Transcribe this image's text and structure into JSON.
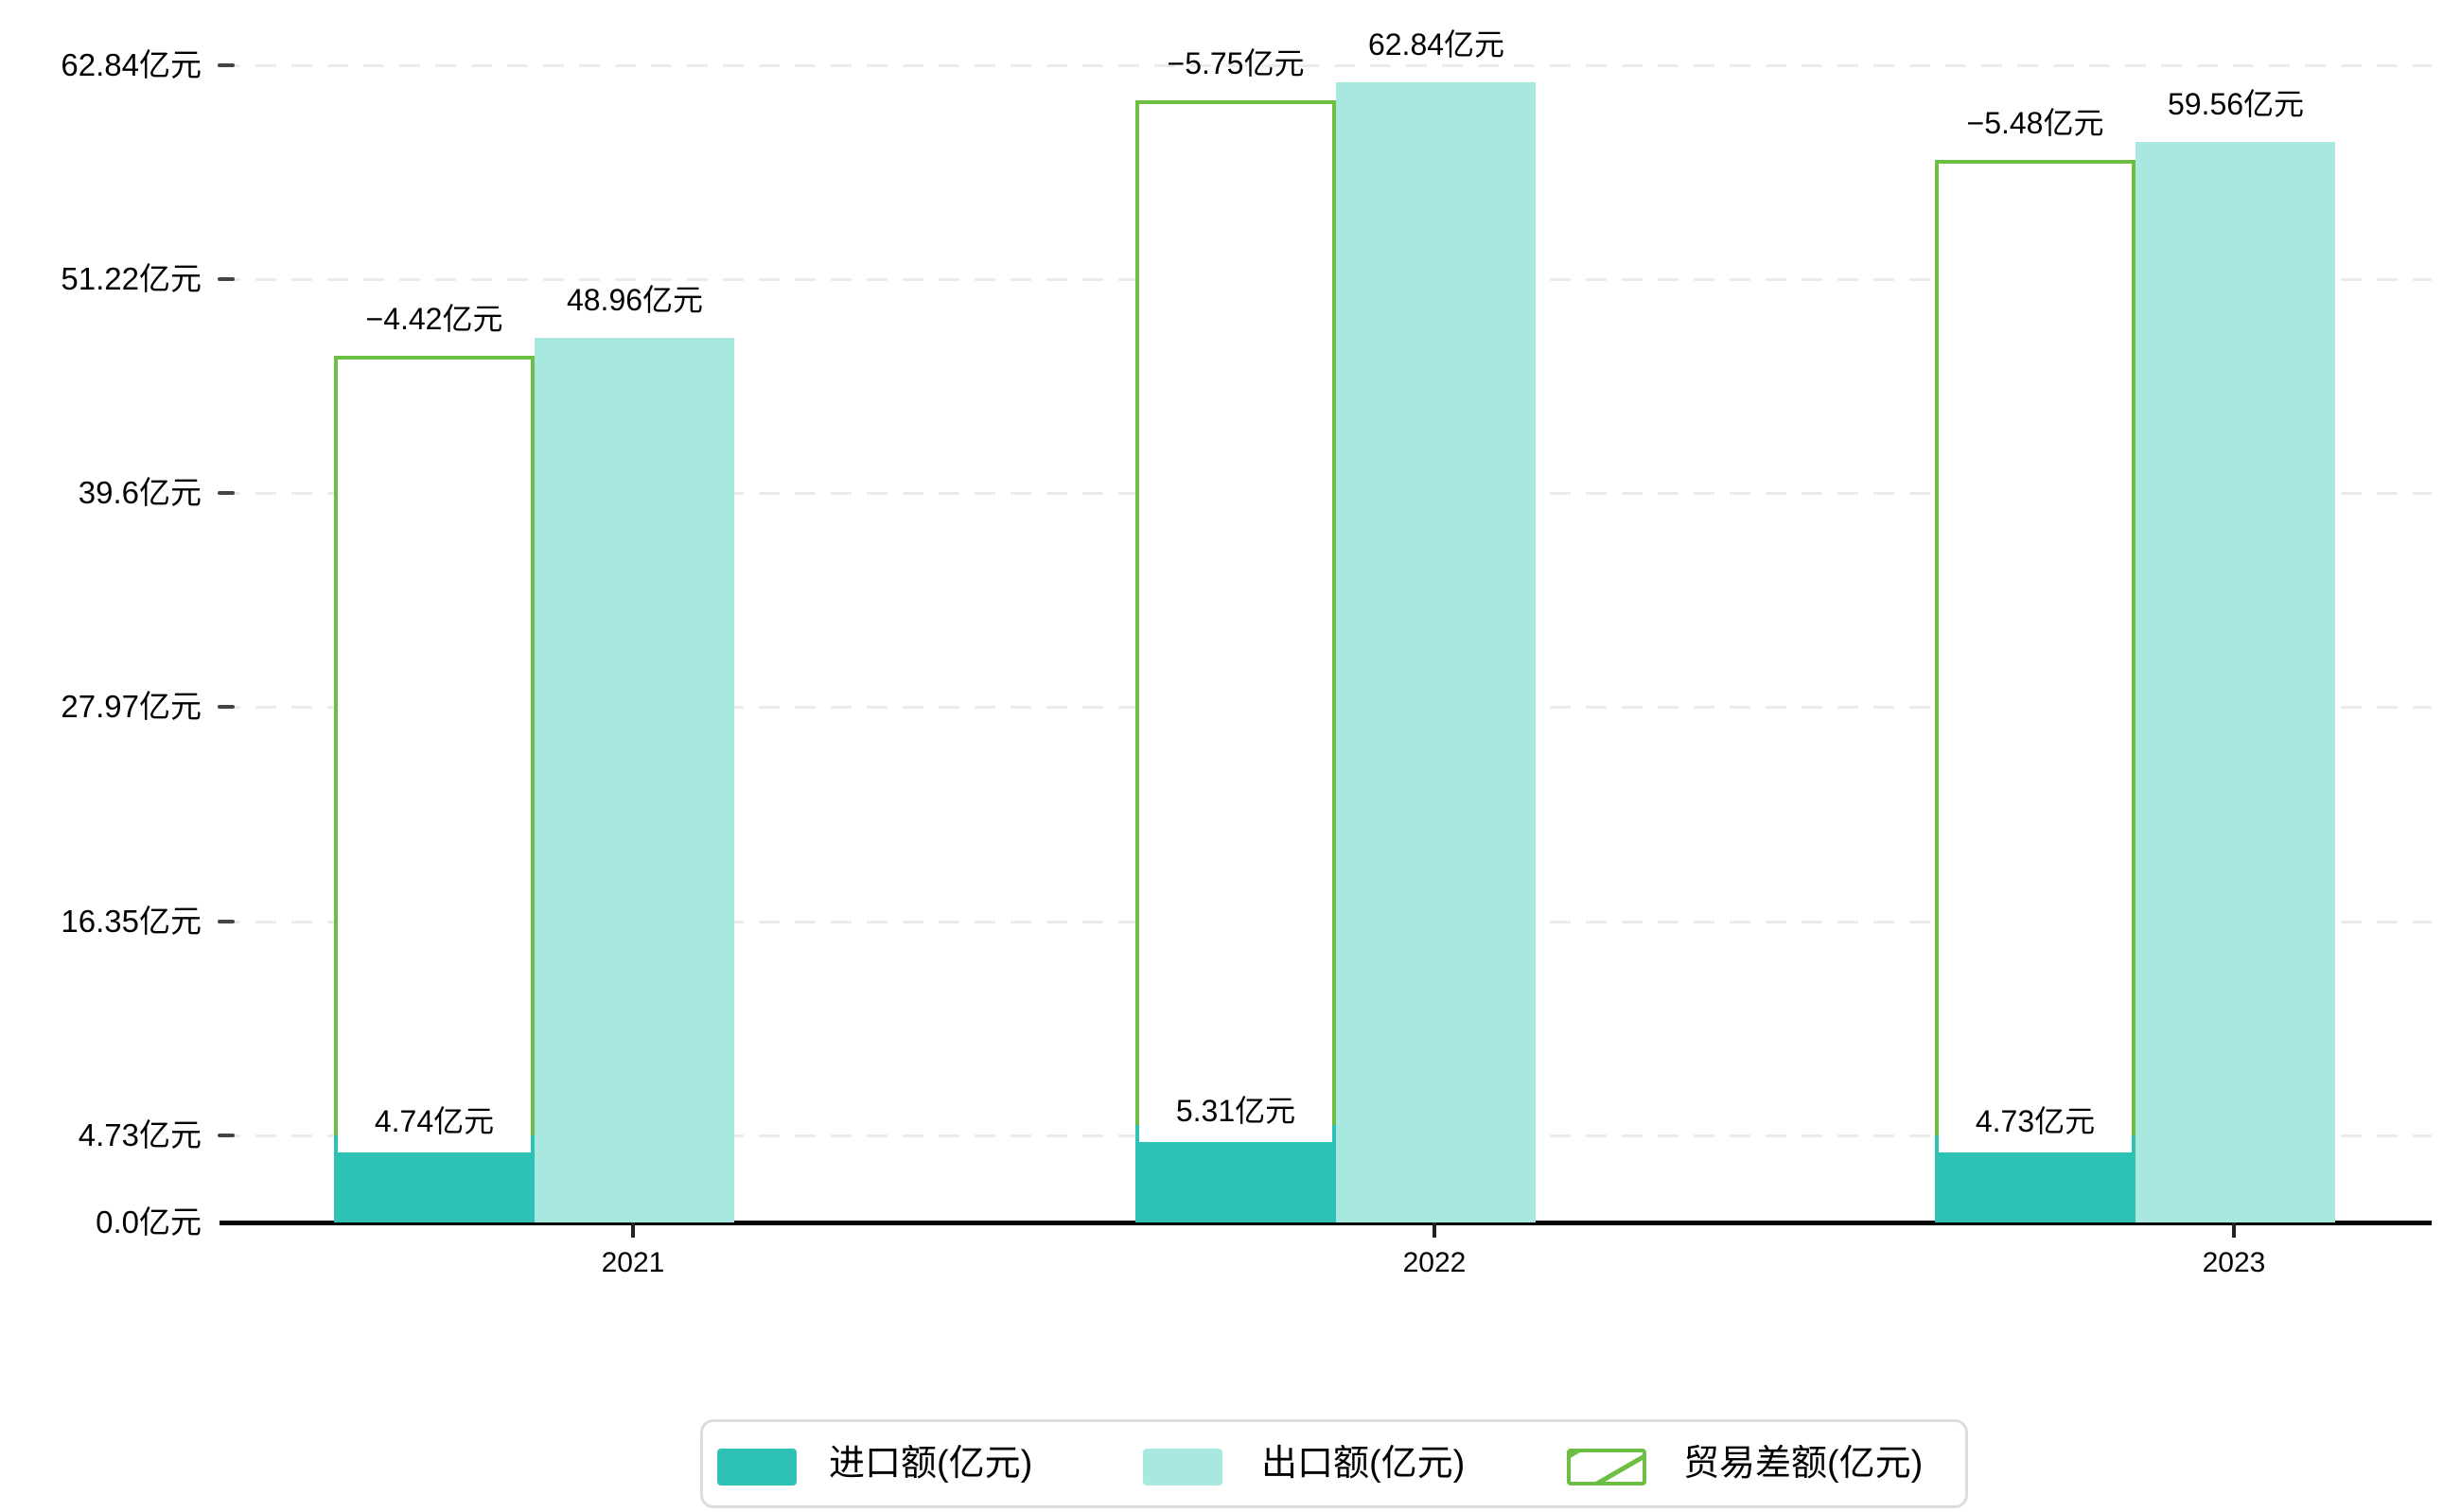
{
  "chart_data": {
    "type": "bar",
    "title": "",
    "categories": [
      "2021",
      "2022",
      "2023"
    ],
    "series": [
      {
        "name": "进口额(亿元)",
        "values": [
          4.74,
          5.31,
          4.73
        ],
        "labels": [
          "4.74亿元",
          "5.31亿元",
          "4.73亿元"
        ],
        "color": "#2EC1B5",
        "style": "solid"
      },
      {
        "name": "出口额(亿元)",
        "values": [
          48.96,
          62.84,
          59.56
        ],
        "labels": [
          "48.96亿元",
          "62.84亿元",
          "59.56亿元"
        ],
        "color": "#A9E8E0",
        "style": "solid"
      },
      {
        "name": "贸易差额(亿元)",
        "values": [
          -4.42,
          -5.75,
          -5.48
        ],
        "labels": [
          "−4.42亿元",
          "−5.75亿元",
          "−5.48亿元"
        ],
        "color": "#6DBF44",
        "style": "hatched"
      }
    ],
    "y_axis": {
      "tick_labels": [
        "62.84亿元",
        "51.22亿元",
        "39.6亿元",
        "27.97亿元",
        "16.35亿元",
        "4.73亿元",
        "0.0亿元"
      ],
      "tick_values": [
        62.84,
        51.22,
        39.6,
        27.97,
        16.35,
        4.73,
        0.0
      ],
      "range": [
        0,
        62.84
      ],
      "grid": "dashed"
    },
    "x_axis": {
      "tick_labels": [
        "2021",
        "2022",
        "2023"
      ]
    },
    "legend": {
      "position": "bottom",
      "items": [
        "进口额(亿元)",
        "出口额(亿元)",
        "贸易差额(亿元)"
      ]
    }
  },
  "colors": {
    "import_bar": "#2EC1B5",
    "export_bar": "#A9E8E0",
    "balance_hatch": "#6DBF44",
    "gridline": "#ececec",
    "axis": "#000000",
    "text": "#000000",
    "legend_border": "#dcdcdc",
    "label_box_bg": "#ffffff"
  }
}
